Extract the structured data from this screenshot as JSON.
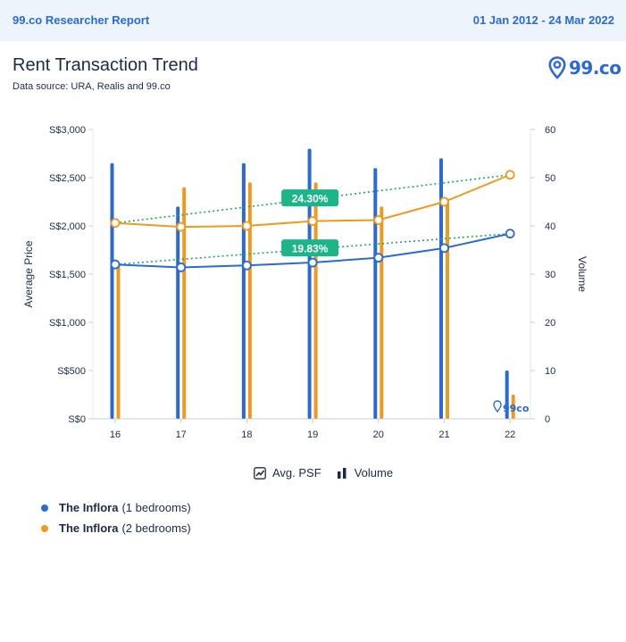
{
  "header": {
    "report_label": "99.co Researcher Report",
    "date_range": "01 Jan 2012 - 24 Mar 2022"
  },
  "title": "Rent Transaction Trend",
  "subtitle": "Data source: URA, Realis and 99.co",
  "brand": {
    "name": "99.co",
    "watermark": "99co",
    "icon": "map-pin-icon"
  },
  "legend": {
    "psf_label": "Avg. PSF",
    "psf_icon": "line-chart-icon",
    "volume_label": "Volume",
    "volume_icon": "bar-chart-icon"
  },
  "series_legend": [
    {
      "project": "The Inflora",
      "detail": "(1 bedrooms)",
      "color": "#2a6ad6"
    },
    {
      "project": "The Inflora",
      "detail": "(2 bedrooms)",
      "color": "#f09a1d"
    }
  ],
  "colors": {
    "blue": "#2a6ad6",
    "orange": "#f09a1d",
    "trend": "#1aa860",
    "badge": "#1cb58a",
    "axis_text": "#1c2b4a"
  },
  "chart_data": {
    "type": "bar",
    "categories": [
      "16",
      "17",
      "18",
      "19",
      "20",
      "21",
      "22"
    ],
    "y_left": {
      "label": "Average Price",
      "ticks": [
        "S$0",
        "S$500",
        "S$1,000",
        "S$1,500",
        "S$2,000",
        "S$2,500",
        "S$3,000"
      ],
      "range": [
        0,
        3000
      ]
    },
    "y_right": {
      "label": "Volume",
      "ticks": [
        "0",
        "10",
        "20",
        "30",
        "40",
        "50",
        "60"
      ],
      "range": [
        0,
        60
      ]
    },
    "volume_series": [
      {
        "name": "The Inflora (1 bedrooms)",
        "values": [
          53,
          44,
          53,
          56,
          52,
          54,
          10
        ]
      },
      {
        "name": "The Inflora (2 bedrooms)",
        "values": [
          32,
          48,
          49,
          49,
          44,
          45,
          5
        ]
      }
    ],
    "price_series": [
      {
        "name": "The Inflora (1 bedrooms)",
        "values": [
          1600,
          1570,
          1590,
          1620,
          1670,
          1770,
          1920
        ]
      },
      {
        "name": "The Inflora (2 bedrooms)",
        "values": [
          2030,
          1990,
          2000,
          2050,
          2060,
          2250,
          2530
        ]
      }
    ],
    "trend_badges": [
      {
        "series": "The Inflora (2 bedrooms)",
        "label": "24.30%"
      },
      {
        "series": "The Inflora (1 bedrooms)",
        "label": "19.83%"
      }
    ]
  }
}
